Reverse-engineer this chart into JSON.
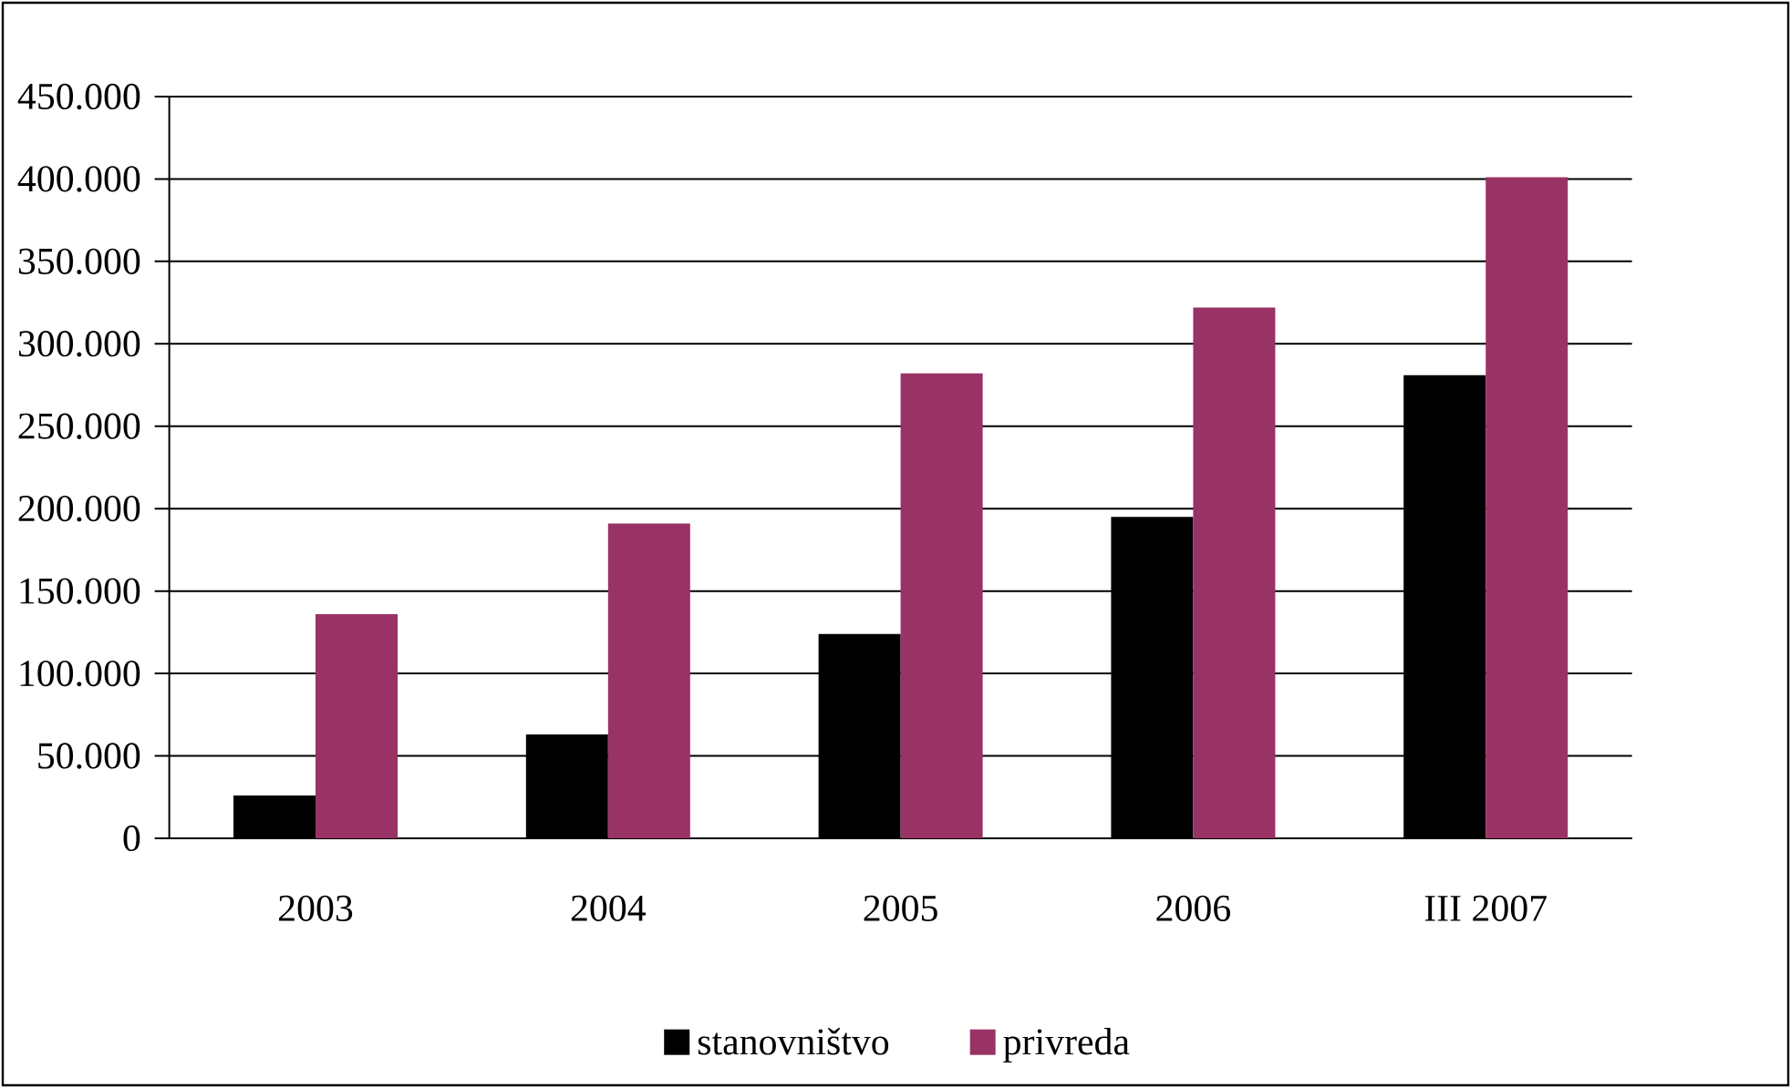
{
  "chart_data": {
    "type": "bar",
    "categories": [
      "2003",
      "2004",
      "2005",
      "2006",
      "III 2007"
    ],
    "series": [
      {
        "name": "stanovništvo",
        "color": "#000000",
        "values": [
          26000,
          63000,
          124000,
          195000,
          281000
        ]
      },
      {
        "name": "privreda",
        "color": "#993366",
        "values": [
          136000,
          191000,
          282000,
          322000,
          401000
        ]
      }
    ],
    "ylim": [
      0,
      450000
    ],
    "yticks": [
      {
        "value": 0,
        "label": "0"
      },
      {
        "value": 50000,
        "label": "50.000"
      },
      {
        "value": 100000,
        "label": "100.000"
      },
      {
        "value": 150000,
        "label": "150.000"
      },
      {
        "value": 200000,
        "label": "200.000"
      },
      {
        "value": 250000,
        "label": "250.000"
      },
      {
        "value": 300000,
        "label": "300.000"
      },
      {
        "value": 350000,
        "label": "350.000"
      },
      {
        "value": 400000,
        "label": "400.000"
      },
      {
        "value": 450000,
        "label": "450.000"
      }
    ],
    "grid": "y",
    "legend": "bottom"
  }
}
